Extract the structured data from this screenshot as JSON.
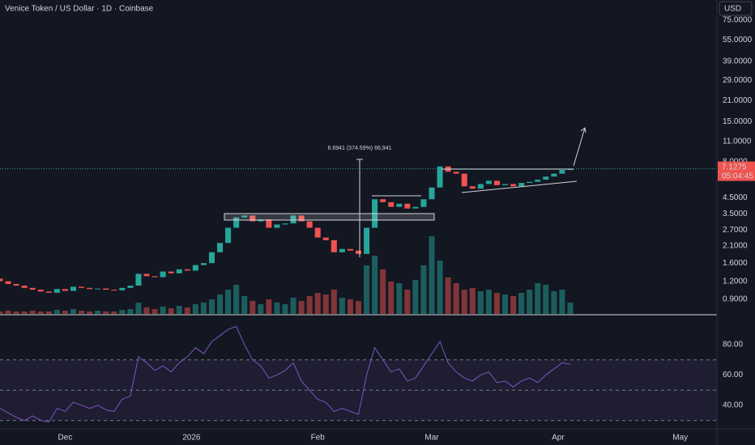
{
  "chart_data": [
    {
      "type": "candlestick",
      "title": "Venice Token / US Dollar · 1D · Coinbase",
      "currency": "USD",
      "x": [
        0,
        2,
        4,
        6,
        8,
        10,
        12,
        14,
        16,
        18,
        20,
        22,
        24,
        26,
        28,
        30,
        32,
        34,
        36,
        38,
        40,
        42,
        44,
        46,
        48,
        50,
        52,
        54,
        56,
        58,
        60,
        62,
        64,
        66,
        68,
        70,
        72,
        74,
        76,
        78,
        80,
        82,
        84,
        86,
        88,
        90,
        92,
        94,
        96,
        98,
        100,
        102,
        104,
        106,
        108,
        110,
        112,
        114,
        116,
        118,
        120,
        122,
        124,
        126,
        128,
        130,
        132,
        134,
        136,
        138,
        140
      ],
      "open": [
        1.25,
        1.2,
        1.15,
        1.12,
        1.08,
        1.05,
        1.02,
        1.0,
        1.06,
        1.03,
        1.1,
        1.08,
        1.06,
        1.07,
        1.05,
        1.04,
        1.08,
        1.12,
        1.35,
        1.3,
        1.28,
        1.4,
        1.36,
        1.45,
        1.42,
        1.55,
        1.6,
        1.9,
        2.2,
        2.8,
        3.3,
        3.4,
        3.1,
        3.2,
        2.8,
        2.95,
        3.0,
        3.4,
        3.1,
        2.8,
        2.4,
        2.3,
        1.9,
        2.0,
        1.95,
        1.85,
        2.8,
        4.4,
        4.2,
        3.9,
        4.1,
        3.8,
        3.9,
        4.4,
        5.3,
        7.4,
        6.8,
        6.6,
        5.4,
        5.2,
        5.6,
        5.9,
        5.5,
        5.6,
        5.4,
        5.7,
        5.8,
        6.0,
        6.3,
        6.6,
        7.0
      ],
      "close": [
        1.2,
        1.15,
        1.12,
        1.08,
        1.05,
        1.02,
        1.0,
        1.06,
        1.03,
        1.1,
        1.08,
        1.06,
        1.07,
        1.05,
        1.04,
        1.08,
        1.12,
        1.35,
        1.3,
        1.28,
        1.4,
        1.36,
        1.45,
        1.42,
        1.55,
        1.6,
        1.9,
        2.2,
        2.8,
        3.3,
        3.4,
        3.1,
        3.2,
        2.8,
        2.95,
        3.0,
        3.4,
        3.1,
        2.8,
        2.4,
        2.3,
        1.9,
        2.0,
        1.95,
        1.85,
        2.8,
        4.4,
        4.2,
        3.9,
        4.1,
        3.8,
        3.9,
        4.4,
        5.3,
        7.4,
        6.8,
        6.6,
        5.4,
        5.2,
        5.6,
        5.9,
        5.5,
        5.6,
        5.4,
        5.7,
        5.8,
        6.0,
        6.3,
        6.6,
        7.0,
        7.1275
      ],
      "volume": [
        3,
        4,
        3,
        3,
        4,
        3,
        3,
        5,
        4,
        6,
        4,
        3,
        4,
        3,
        3,
        5,
        6,
        14,
        8,
        6,
        9,
        7,
        10,
        8,
        12,
        14,
        18,
        24,
        30,
        36,
        22,
        16,
        12,
        18,
        14,
        12,
        20,
        16,
        22,
        26,
        24,
        30,
        20,
        18,
        16,
        60,
        72,
        55,
        40,
        38,
        30,
        42,
        60,
        96,
        66,
        45,
        38,
        30,
        32,
        28,
        30,
        26,
        24,
        22,
        26,
        30,
        38,
        36,
        28,
        30,
        14
      ],
      "up_color": "#26a69a",
      "down_color": "#ef5350",
      "log_scale": true,
      "ylim": [
        0.715,
        103.4
      ],
      "yticks": [
        {
          "value": 0.9,
          "label": "0.9000"
        },
        {
          "value": 1.2,
          "label": "1.2000"
        },
        {
          "value": 1.6,
          "label": "1.6000"
        },
        {
          "value": 2.1,
          "label": "2.1000"
        },
        {
          "value": 2.7,
          "label": "2.7000"
        },
        {
          "value": 3.5,
          "label": "3.5000"
        },
        {
          "value": 4.5,
          "label": "4.5000"
        },
        {
          "value": 8,
          "label": "8.0000"
        },
        {
          "value": 11,
          "label": "11.0000"
        },
        {
          "value": 15,
          "label": "15.0000"
        },
        {
          "value": 21,
          "label": "21.0000"
        },
        {
          "value": 29,
          "label": "29.0000"
        },
        {
          "value": 39,
          "label": "39.0000"
        },
        {
          "value": 55,
          "label": "55.0000"
        },
        {
          "value": 75,
          "label": "75.0000"
        }
      ],
      "xlim": [
        0,
        176
      ],
      "xticks": [
        {
          "value": 16,
          "label": "Dec"
        },
        {
          "value": 47,
          "label": "2026"
        },
        {
          "value": 78,
          "label": "Feb"
        },
        {
          "value": 106,
          "label": "Mar"
        },
        {
          "value": 137,
          "label": "Apr"
        },
        {
          "value": 167,
          "label": "May"
        }
      ],
      "last_price": 7.1275,
      "countdown": "05:04:45",
      "annotation": "6.6941 (374.59%) 66,941"
    },
    {
      "type": "line",
      "x": [
        0,
        2,
        4,
        6,
        8,
        10,
        12,
        14,
        16,
        18,
        20,
        22,
        24,
        26,
        28,
        30,
        32,
        34,
        36,
        38,
        40,
        42,
        44,
        46,
        48,
        50,
        52,
        54,
        56,
        58,
        60,
        62,
        64,
        66,
        68,
        70,
        72,
        74,
        76,
        78,
        80,
        82,
        84,
        86,
        88,
        90,
        92,
        94,
        96,
        98,
        100,
        102,
        104,
        106,
        108,
        110,
        112,
        114,
        116,
        118,
        120,
        122,
        124,
        126,
        128,
        130,
        132,
        134,
        136,
        138,
        140
      ],
      "values": [
        38,
        35,
        32,
        30,
        33,
        30,
        29,
        38,
        36,
        42,
        40,
        38,
        40,
        37,
        36,
        44,
        46,
        72,
        68,
        63,
        66,
        62,
        68,
        72,
        78,
        74,
        82,
        86,
        90,
        92,
        80,
        70,
        66,
        58,
        60,
        63,
        68,
        56,
        50,
        44,
        42,
        36,
        38,
        36,
        34,
        60,
        78,
        70,
        62,
        64,
        56,
        58,
        66,
        74,
        82,
        68,
        62,
        58,
        56,
        60,
        62,
        55,
        56,
        52,
        56,
        58,
        55,
        60,
        64,
        68,
        67
      ],
      "color": "#7e57c2",
      "bands": [
        70,
        50,
        30
      ],
      "ylim": [
        24.5,
        98.1
      ],
      "yticks": [
        {
          "value": 80,
          "label": "80.00"
        },
        {
          "value": 60,
          "label": "60.00"
        },
        {
          "value": 40,
          "label": "40.00"
        }
      ]
    }
  ]
}
